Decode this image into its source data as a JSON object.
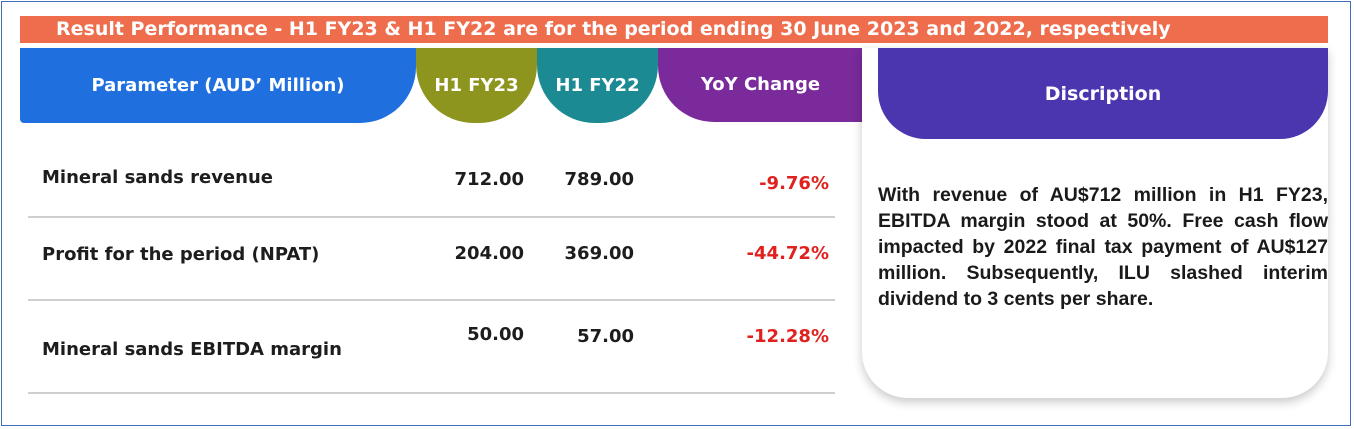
{
  "banner": {
    "title": "Result Performance - H1 FY23 & H1 FY22 are for the period ending 30 June 2023 and 2022, respectively"
  },
  "table": {
    "headers": {
      "parameter": "Parameter (AUD’ Million)",
      "h1fy23": "H1 FY23",
      "h1fy22": "H1 FY22",
      "yoy": "YoY Change"
    },
    "rows": [
      {
        "parameter": "Mineral sands revenue",
        "h1fy23": "712.00",
        "h1fy22": "789.00",
        "yoy": "-9.76%"
      },
      {
        "parameter": "Profit for the period (NPAT)",
        "h1fy23": "204.00",
        "h1fy22": "369.00",
        "yoy": "-44.72%"
      },
      {
        "parameter": "Mineral sands EBITDA margin",
        "h1fy23": "50.00",
        "h1fy22": "57.00",
        "yoy": "-12.28%"
      }
    ]
  },
  "description": {
    "header": "Discription",
    "text": "With revenue of AU$712 million in H1 FY23, EBITDA margin stood at 50%. Free cash flow impacted by 2022 final tax payment of AU$127 million. Subsequently, ILU slashed interim dividend to 3 cents per share."
  },
  "colors": {
    "banner": "#ee6d4d",
    "parameter_header": "#1f6fdf",
    "h1fy23_header": "#8e951f",
    "h1fy22_header": "#1c8a93",
    "yoy_header": "#7a2a9b",
    "description_header": "#4b36b0",
    "negative_change": "#e0211e"
  }
}
